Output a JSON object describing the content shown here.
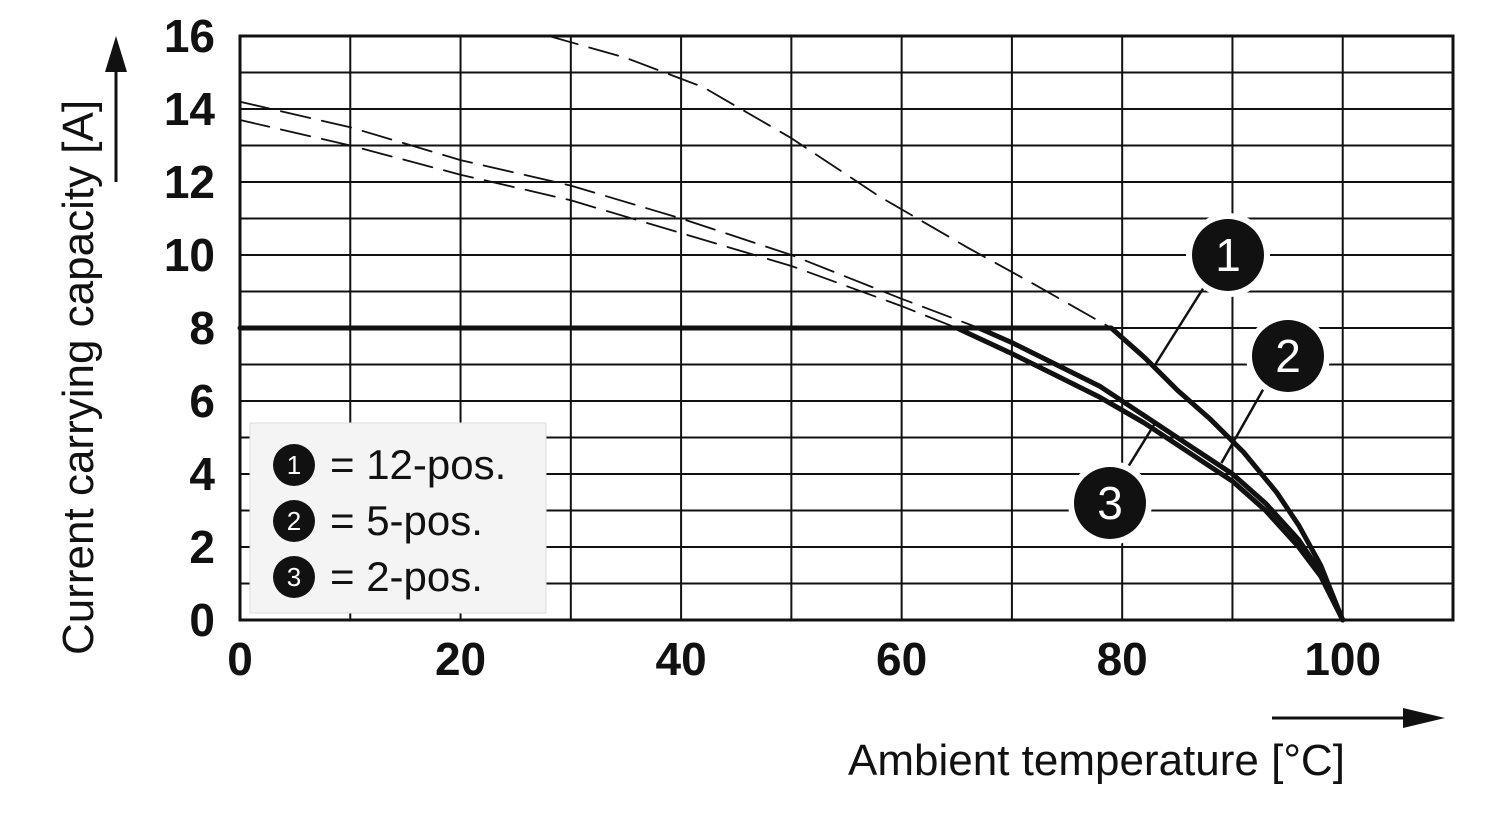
{
  "chart_data": {
    "type": "line",
    "xlabel": "Ambient temperature [°C]",
    "ylabel": "Current carrying capacity [A]",
    "xlim": [
      0,
      110
    ],
    "ylim": [
      0,
      16
    ],
    "x_ticks": [
      "0",
      "20",
      "40",
      "60",
      "80",
      "100"
    ],
    "y_ticks": [
      "0",
      "2",
      "4",
      "6",
      "8",
      "10",
      "12",
      "14",
      "16"
    ],
    "grid": true,
    "legend_placement": "bottom-left",
    "legend": [
      {
        "marker": "1",
        "label": "= 12-pos."
      },
      {
        "marker": "2",
        "label": "= 5-pos."
      },
      {
        "marker": "3",
        "label": "= 2-pos."
      }
    ],
    "series": [
      {
        "marker": "1",
        "style": "solid",
        "points": [
          [
            0,
            8
          ],
          [
            79,
            8
          ],
          [
            82,
            7.2
          ],
          [
            85,
            6.3
          ],
          [
            88,
            5.5
          ],
          [
            91,
            4.6
          ],
          [
            94,
            3.5
          ],
          [
            96,
            2.6
          ],
          [
            98,
            1.5
          ],
          [
            100,
            0
          ]
        ]
      },
      {
        "marker": "2",
        "style": "solid",
        "points": [
          [
            67,
            8
          ],
          [
            70,
            7.6
          ],
          [
            74,
            7.0
          ],
          [
            78,
            6.4
          ],
          [
            82,
            5.6
          ],
          [
            86,
            4.8
          ],
          [
            90,
            4.0
          ],
          [
            93,
            3.2
          ],
          [
            96,
            2.2
          ],
          [
            98,
            1.3
          ],
          [
            100,
            0
          ]
        ]
      },
      {
        "marker": "3",
        "style": "solid",
        "points": [
          [
            65,
            8
          ],
          [
            70,
            7.3
          ],
          [
            74,
            6.7
          ],
          [
            78,
            6.1
          ],
          [
            82,
            5.4
          ],
          [
            86,
            4.6
          ],
          [
            90,
            3.8
          ],
          [
            93,
            3.0
          ],
          [
            96,
            2.0
          ],
          [
            98,
            1.2
          ],
          [
            100,
            0
          ]
        ]
      },
      {
        "marker": "1",
        "style": "dashed",
        "points": [
          [
            28,
            16
          ],
          [
            35,
            15.4
          ],
          [
            42,
            14.6
          ],
          [
            50,
            13.2
          ],
          [
            58,
            11.6
          ],
          [
            66,
            10.2
          ],
          [
            72,
            9.2
          ],
          [
            79,
            8
          ]
        ]
      },
      {
        "marker": "2",
        "style": "dashed",
        "points": [
          [
            0,
            14.2
          ],
          [
            10,
            13.5
          ],
          [
            20,
            12.6
          ],
          [
            30,
            11.9
          ],
          [
            40,
            11.0
          ],
          [
            50,
            10.0
          ],
          [
            60,
            8.8
          ],
          [
            67,
            8
          ]
        ]
      },
      {
        "marker": "3",
        "style": "dashed",
        "points": [
          [
            0,
            13.7
          ],
          [
            10,
            13.0
          ],
          [
            20,
            12.2
          ],
          [
            30,
            11.5
          ],
          [
            40,
            10.6
          ],
          [
            50,
            9.7
          ],
          [
            60,
            8.6
          ],
          [
            65,
            8
          ]
        ]
      }
    ],
    "callouts": [
      {
        "label": "1",
        "series_point": [
          83,
          7.0
        ]
      },
      {
        "label": "2",
        "series_point": [
          89,
          4.3
        ]
      },
      {
        "label": "3",
        "series_point": [
          83,
          5.4
        ]
      }
    ]
  },
  "colors": {
    "line": "#111111",
    "grid": "#111111",
    "background": "#ffffff",
    "marker_fill": "#111111",
    "legend_bg": "#f4f4f4"
  }
}
